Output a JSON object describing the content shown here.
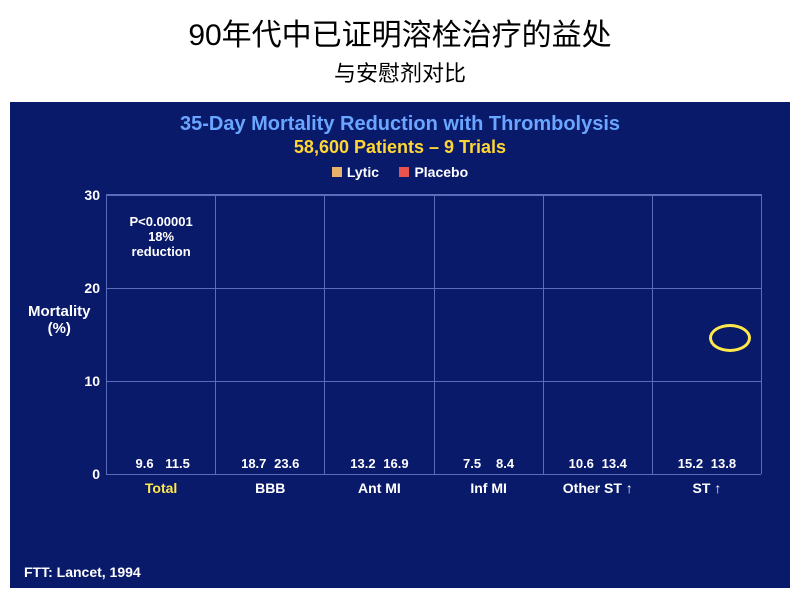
{
  "header": {
    "title_main": "90年代中已证明溶栓治疗的益处",
    "title_sub": "与安慰剂对比",
    "main_fontsize": 30,
    "sub_fontsize": 22,
    "color": "#000000"
  },
  "chart": {
    "type": "bar",
    "background_color": "#0a1a6b",
    "gridline_color": "#5a6db8",
    "title": "35-Day Mortality Reduction with Thrombolysis",
    "subtitle": "58,600 Patients – 9 Trials",
    "title_color": "#6aa6ff",
    "subtitle_color": "#ffd633",
    "title_fontsize": 20,
    "subtitle_fontsize": 18,
    "legend": {
      "items": [
        {
          "label": "Lytic",
          "color": "#e8b26a"
        },
        {
          "label": "Placebo",
          "color": "#e8524f"
        }
      ],
      "text_color": "#ffffff",
      "fontsize": 14
    },
    "yaxis": {
      "label_line1": "Mortality",
      "label_line2": "(%)",
      "label_color": "#ffffff",
      "label_fontsize": 15,
      "tick_color": "#ffffff",
      "tick_fontsize": 14,
      "min": 0,
      "max": 30,
      "ticks": [
        0,
        10,
        20,
        30
      ]
    },
    "categories": [
      {
        "label": "Total",
        "lytic": 9.6,
        "placebo": 11.5,
        "label_color": "#ffe94a"
      },
      {
        "label": "BBB",
        "lytic": 18.7,
        "placebo": 23.6,
        "label_color": "#ffffff"
      },
      {
        "label": "Ant MI",
        "lytic": 13.2,
        "placebo": 16.9,
        "label_color": "#ffffff"
      },
      {
        "label": "Inf MI",
        "lytic": 7.5,
        "placebo": 8.4,
        "label_color": "#ffffff"
      },
      {
        "label": "Other ST ↑",
        "lytic": 10.6,
        "placebo": 13.4,
        "label_color": "#ffffff"
      },
      {
        "label": "ST ↑",
        "lytic": 15.2,
        "placebo": 13.8,
        "label_color": "#ffffff"
      }
    ],
    "bar_value_color": "#ffffff",
    "bar_value_fontsize": 13,
    "xlabel_fontsize": 14,
    "annotation": {
      "line1": "P<0.00001",
      "line2": "18%",
      "line3": "reduction",
      "color": "#ffffff",
      "fontsize": 13
    },
    "highlight_circle": {
      "color": "#ffe94a"
    },
    "footer_left": "FTT:  Lancet, 1994",
    "footer_left_color": "#ffffff",
    "footer_left_fontsize": 14,
    "footer_right": "",
    "footer_right_color": "#7aa0d8",
    "footer_right_fontsize": 9
  }
}
